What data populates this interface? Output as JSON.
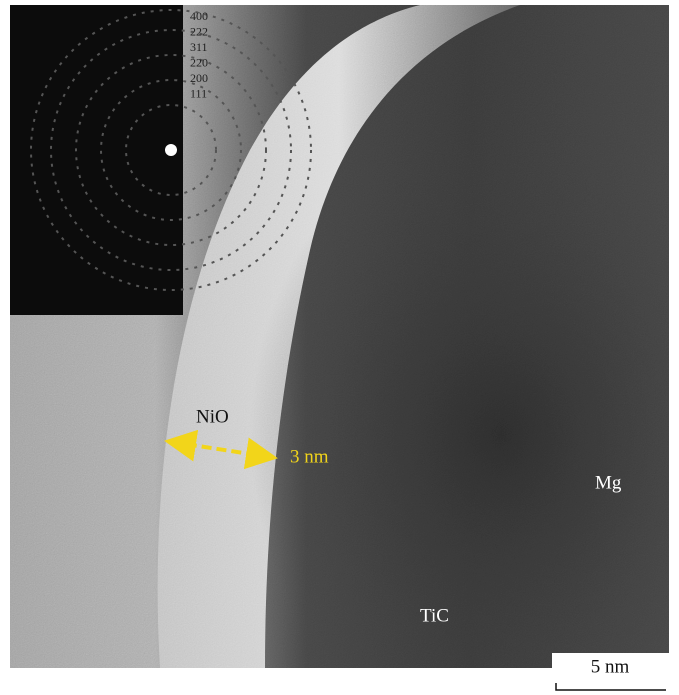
{
  "inset": {
    "ring_labels": [
      "400",
      "222",
      "311",
      "220",
      "200",
      "111"
    ]
  },
  "labels": {
    "layer": "NiO",
    "thickness": "3 nm",
    "matrix": "Mg",
    "particle": "TiC"
  },
  "scale_bar": "5 nm"
}
